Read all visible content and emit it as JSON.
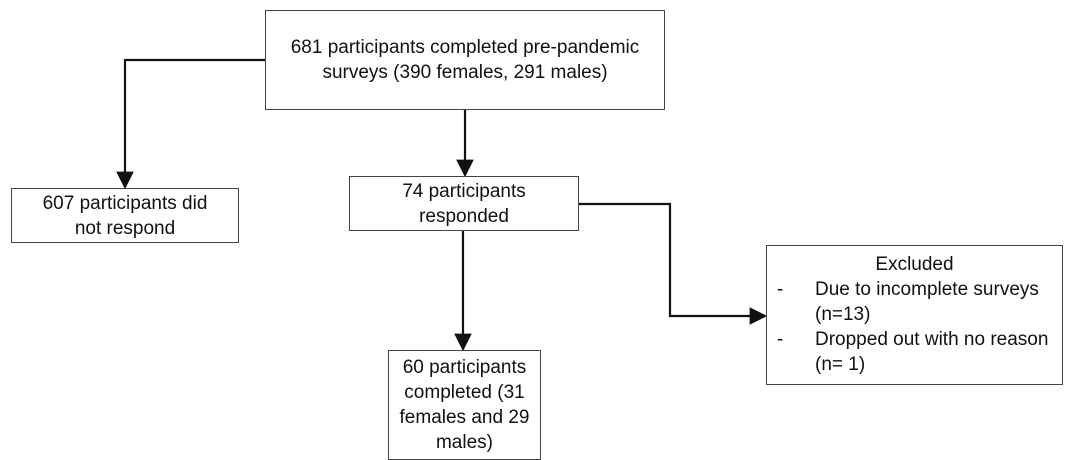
{
  "nodes": [
    {
      "label": "681 participants completed pre-pandemic surveys (390 females, 291 males)"
    },
    {
      "label": "607 participants did not respond"
    },
    {
      "label": "74 participants responded"
    },
    {
      "label": "60 participants completed (31 females and 29 males)"
    },
    {
      "label": "Excluded",
      "items": [
        {
          "marker": "-",
          "text": "Due to incomplete surveys (n=13)"
        },
        {
          "marker": "-",
          "text": "Dropped out with no reason (n= 1)"
        }
      ]
    }
  ]
}
